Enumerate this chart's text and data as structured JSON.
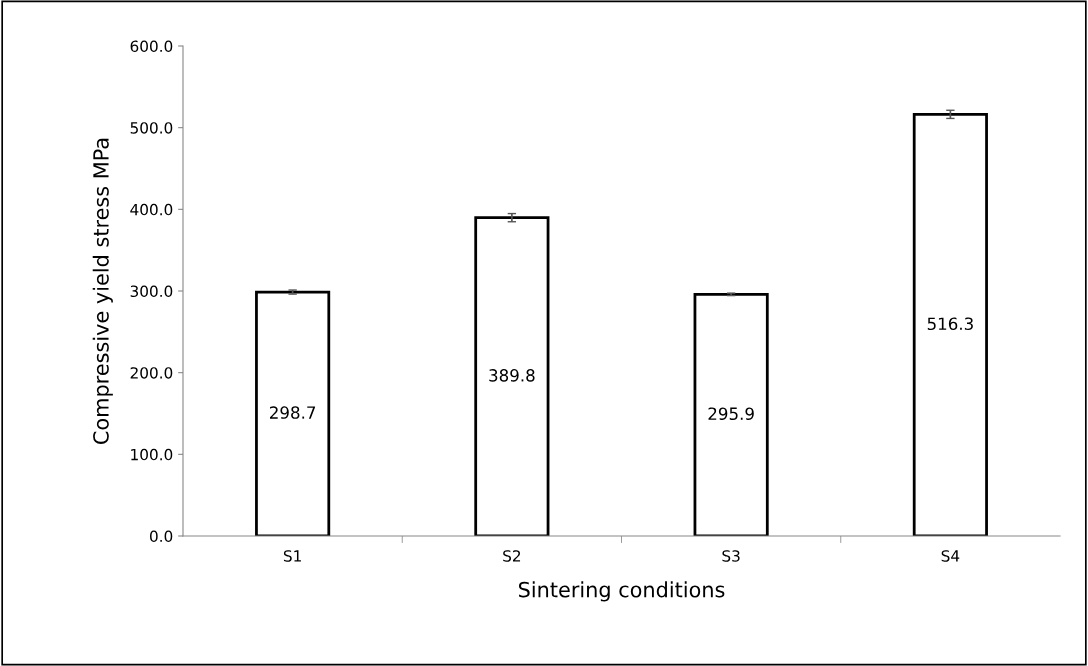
{
  "chart_data": {
    "type": "bar",
    "xlabel": "Sintering conditions",
    "ylabel": "Compressive yield stress MPa",
    "categories": [
      "S1",
      "S2",
      "S3",
      "S4"
    ],
    "values": [
      298.7,
      389.8,
      295.9,
      516.3
    ],
    "errors": [
      2.5,
      5,
      1.5,
      5
    ],
    "color": "#ffffff",
    "data_labels": true,
    "ylim": [
      0,
      600
    ],
    "yticks": [
      {
        "value": 0,
        "label": "0.0"
      },
      {
        "value": 100,
        "label": "100.0"
      },
      {
        "value": 200,
        "label": "200.0"
      },
      {
        "value": 300,
        "label": "300.0"
      },
      {
        "value": 400,
        "label": "400.0"
      },
      {
        "value": 500,
        "label": "500.0"
      },
      {
        "value": 600,
        "label": "600.0"
      }
    ],
    "grid": false,
    "legend": false
  }
}
